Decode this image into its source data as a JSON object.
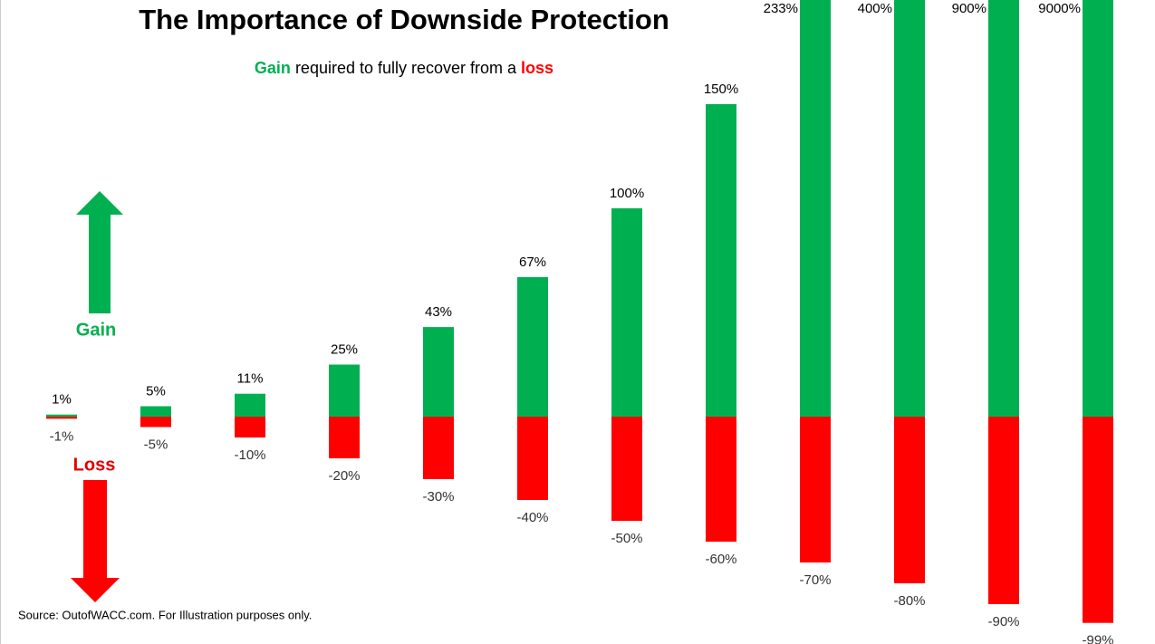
{
  "chart_data": {
    "type": "bar",
    "title": "The Importance of Downside Protection",
    "subtitle": [
      "Gain",
      " required to fully recover from a ",
      "loss"
    ],
    "gain_label": "Gain",
    "loss_label": "Loss",
    "source": "Source: OutofWACC.com. For Illustration purposes only.",
    "ylim": [
      -100,
      200
    ],
    "series": [
      {
        "name": "Gain",
        "color": "#00b050",
        "values": [
          1,
          5,
          11,
          25,
          43,
          67,
          100,
          150,
          233,
          400,
          900,
          9000
        ],
        "value_labels": [
          "1%",
          "5%",
          "11%",
          "25%",
          "43%",
          "67%",
          "100%",
          "150%",
          "233%",
          "400%",
          "900%",
          "9000%"
        ]
      },
      {
        "name": "Loss",
        "color": "#ff0000",
        "values": [
          -1,
          -5,
          -10,
          -20,
          -30,
          -40,
          -50,
          -60,
          -70,
          -80,
          -90,
          -99
        ],
        "value_labels": [
          "-1%",
          "-5%",
          "-10%",
          "-20%",
          "-30%",
          "-40%",
          "-50%",
          "-60%",
          "-70%",
          "-80%",
          "-90%",
          "-99%"
        ]
      }
    ]
  }
}
